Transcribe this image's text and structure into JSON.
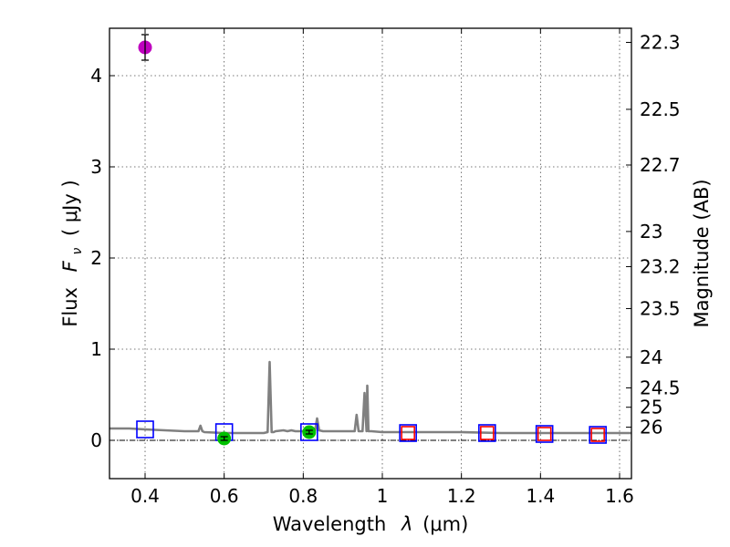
{
  "chart_data": {
    "type": "scatter",
    "title": "",
    "xlabel_text": "Wavelength",
    "xlabel_math": "λ",
    "xlabel_unit": "(μm)",
    "ylabel_text": "Flux",
    "ylabel_math": "F",
    "ylabel_math_sub": "ν",
    "ylabel_unit": "( μJy )",
    "y2label": "Magnitude (AB)",
    "xlim": [
      0.31,
      1.63
    ],
    "ylim": [
      -0.42,
      4.52
    ],
    "grid": true,
    "x_ticks": [
      0.4,
      0.6,
      0.8,
      1.0,
      1.2,
      1.4,
      1.6
    ],
    "x_tick_labels": [
      "0.4",
      "0.6",
      "0.8",
      "1",
      "1.2",
      "1.4",
      "1.6"
    ],
    "y_ticks": [
      0,
      1,
      2,
      3,
      4
    ],
    "y_tick_labels": [
      "0",
      "1",
      "2",
      "3",
      "4"
    ],
    "y2_tick_labels": [
      "22.3",
      "22.5",
      "22.7",
      "23",
      "23.2",
      "23.5",
      "24",
      "24.5",
      "25",
      "26"
    ],
    "series": [
      {
        "marker": "line",
        "color": "#808080",
        "x": [
          0.31,
          0.36,
          0.4,
          0.45,
          0.5,
          0.535,
          0.54,
          0.545,
          0.55,
          0.6,
          0.65,
          0.7,
          0.71,
          0.715,
          0.72,
          0.725,
          0.73,
          0.75,
          0.76,
          0.77,
          0.78,
          0.8,
          0.82,
          0.83,
          0.835,
          0.84,
          0.85,
          0.9,
          0.93,
          0.935,
          0.94,
          0.95,
          0.955,
          0.96,
          0.962,
          0.965,
          0.968,
          0.972,
          1.0,
          1.1,
          1.2,
          1.3,
          1.4,
          1.5,
          1.63
        ],
        "y": [
          0.13,
          0.13,
          0.12,
          0.11,
          0.1,
          0.1,
          0.16,
          0.1,
          0.09,
          0.08,
          0.08,
          0.08,
          0.09,
          0.86,
          0.09,
          0.09,
          0.1,
          0.11,
          0.1,
          0.11,
          0.1,
          0.1,
          0.1,
          0.11,
          0.24,
          0.11,
          0.1,
          0.1,
          0.1,
          0.28,
          0.1,
          0.1,
          0.52,
          0.1,
          0.6,
          0.1,
          0.1,
          0.1,
          0.09,
          0.09,
          0.09,
          0.08,
          0.08,
          0.08,
          0.08
        ]
      },
      {
        "marker": "open-square",
        "color": "#0000ff",
        "x": [
          0.4,
          0.6,
          0.815,
          1.065,
          1.265,
          1.41,
          1.545
        ],
        "y": [
          0.12,
          0.09,
          0.09,
          0.08,
          0.08,
          0.07,
          0.06
        ]
      },
      {
        "marker": "open-square",
        "color": "#ff0000",
        "x": [
          1.065,
          1.265,
          1.41,
          1.545
        ],
        "y": [
          0.08,
          0.08,
          0.07,
          0.06
        ]
      },
      {
        "marker": "circle",
        "color": "#bf00bf",
        "x": [
          0.4
        ],
        "y": [
          4.31
        ],
        "yerr": [
          0.14
        ]
      },
      {
        "marker": "circle",
        "color": "#00c000",
        "x": [
          0.6,
          0.815
        ],
        "y": [
          0.02,
          0.09
        ],
        "yerr": [
          0.02,
          0.02
        ]
      }
    ]
  }
}
